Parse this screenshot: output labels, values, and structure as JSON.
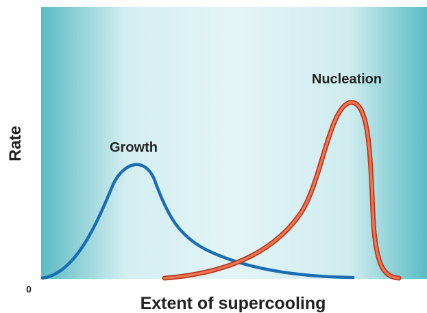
{
  "y_axis_label": "Rate",
  "x_axis_label": "Extent of supercooling",
  "origin_label": "0",
  "curves": [
    {
      "label": "Growth"
    },
    {
      "label": "Nucleation"
    }
  ]
}
